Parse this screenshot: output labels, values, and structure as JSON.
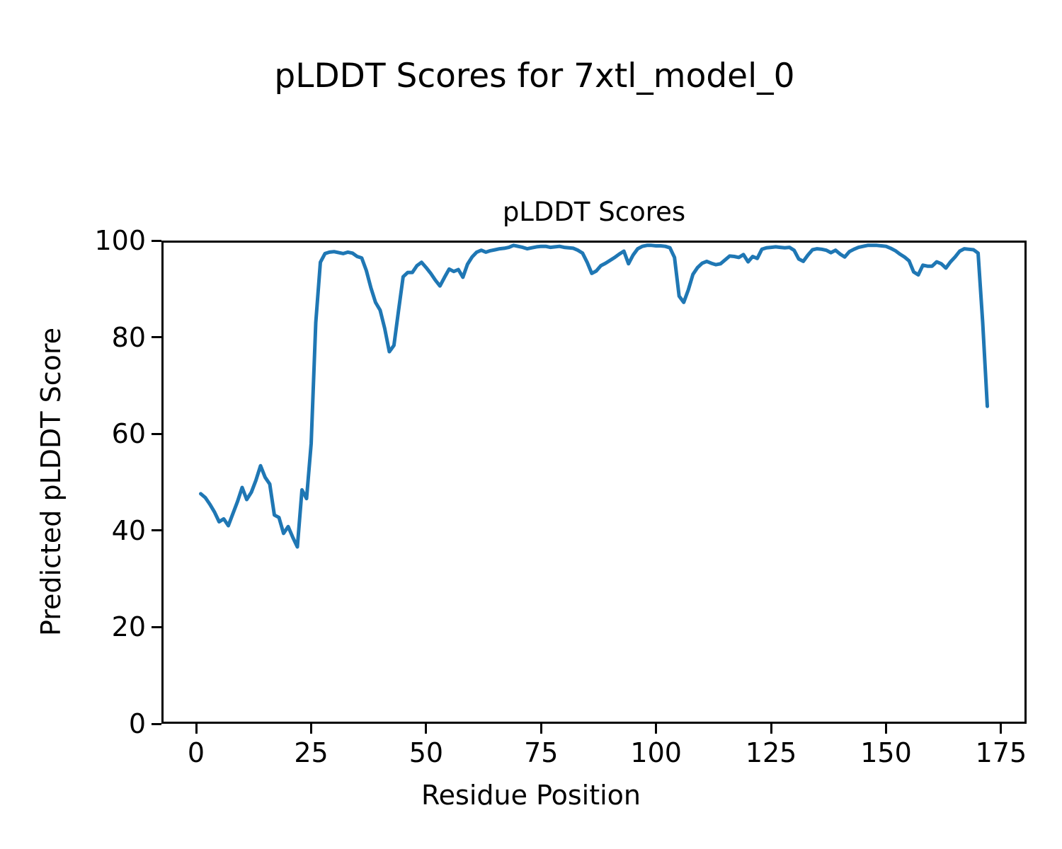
{
  "chart_data": {
    "type": "line",
    "suptitle": "pLDDT Scores for 7xtl_model_0",
    "title": "pLDDT Scores",
    "xlabel": "Residue Position",
    "ylabel": "Predicted pLDDT Score",
    "xticks": [
      0,
      25,
      50,
      75,
      100,
      125,
      150,
      175
    ],
    "yticks": [
      0,
      20,
      40,
      60,
      80,
      100
    ],
    "xlim": [
      -7.55,
      180.55
    ],
    "ylim": [
      0,
      100
    ],
    "grid": false,
    "legend": "none",
    "line_color": "#1f77b4",
    "x": [
      1,
      2,
      3,
      4,
      5,
      6,
      7,
      8,
      9,
      10,
      11,
      12,
      13,
      14,
      15,
      16,
      17,
      18,
      19,
      20,
      21,
      22,
      23,
      24,
      25,
      26,
      27,
      28,
      29,
      30,
      31,
      32,
      33,
      34,
      35,
      36,
      37,
      38,
      39,
      40,
      41,
      42,
      43,
      44,
      45,
      46,
      47,
      48,
      49,
      50,
      51,
      52,
      53,
      54,
      55,
      56,
      57,
      58,
      59,
      60,
      61,
      62,
      63,
      64,
      65,
      66,
      67,
      68,
      69,
      70,
      71,
      72,
      73,
      74,
      75,
      76,
      77,
      78,
      79,
      80,
      81,
      82,
      83,
      84,
      85,
      86,
      87,
      88,
      89,
      90,
      91,
      92,
      93,
      94,
      95,
      96,
      97,
      98,
      99,
      100,
      101,
      102,
      103,
      104,
      105,
      106,
      107,
      108,
      109,
      110,
      111,
      112,
      113,
      114,
      115,
      116,
      117,
      118,
      119,
      120,
      121,
      122,
      123,
      124,
      125,
      126,
      127,
      128,
      129,
      130,
      131,
      132,
      133,
      134,
      135,
      136,
      137,
      138,
      139,
      140,
      141,
      142,
      143,
      144,
      145,
      146,
      147,
      148,
      149,
      150,
      151,
      152,
      153,
      154,
      155,
      156,
      157,
      158,
      159,
      160,
      161,
      162,
      163,
      164,
      165,
      166,
      167,
      168,
      169,
      170,
      171,
      172
    ],
    "values": [
      47.6,
      46.8,
      45.4,
      43.8,
      41.8,
      42.4,
      41.0,
      43.5,
      46.0,
      48.9,
      46.4,
      47.9,
      50.4,
      53.4,
      51.0,
      49.6,
      43.2,
      42.7,
      39.4,
      40.8,
      38.6,
      36.6,
      48.4,
      46.6,
      58.0,
      83.0,
      95.5,
      97.3,
      97.6,
      97.7,
      97.5,
      97.3,
      97.6,
      97.4,
      96.7,
      96.4,
      93.8,
      90.2,
      87.2,
      85.6,
      81.8,
      77.0,
      78.3,
      85.5,
      92.5,
      93.4,
      93.4,
      94.8,
      95.5,
      94.4,
      93.2,
      91.8,
      90.6,
      92.4,
      94.1,
      93.6,
      94.0,
      92.4,
      95.1,
      96.6,
      97.6,
      98.0,
      97.6,
      97.9,
      98.1,
      98.3,
      98.4,
      98.6,
      99.0,
      98.8,
      98.6,
      98.3,
      98.5,
      98.7,
      98.8,
      98.8,
      98.6,
      98.7,
      98.8,
      98.6,
      98.5,
      98.4,
      98.0,
      97.4,
      95.5,
      93.2,
      93.7,
      94.8,
      95.3,
      95.9,
      96.5,
      97.2,
      97.8,
      95.2,
      97.0,
      98.3,
      98.8,
      99.0,
      99.0,
      98.9,
      98.9,
      98.8,
      98.5,
      96.5,
      88.5,
      87.2,
      89.8,
      93.0,
      94.4,
      95.3,
      95.7,
      95.3,
      95.0,
      95.2,
      96.0,
      96.8,
      96.7,
      96.5,
      97.1,
      95.6,
      96.7,
      96.3,
      98.2,
      98.5,
      98.6,
      98.7,
      98.6,
      98.5,
      98.6,
      98.0,
      96.2,
      95.7,
      97.0,
      98.1,
      98.3,
      98.2,
      98.0,
      97.5,
      98.0,
      97.2,
      96.6,
      97.7,
      98.2,
      98.6,
      98.8,
      99.0,
      99.0,
      99.0,
      98.9,
      98.8,
      98.4,
      97.9,
      97.2,
      96.6,
      95.8,
      93.5,
      92.9,
      94.9,
      94.7,
      94.7,
      95.6,
      95.2,
      94.3,
      95.6,
      96.6,
      97.8,
      98.3,
      98.2,
      98.1,
      97.4,
      83.0,
      65.7
    ]
  }
}
